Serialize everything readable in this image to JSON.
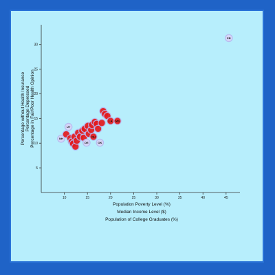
{
  "chart_data": {
    "type": "scatter",
    "x_axis_label_options": [
      "Population Poverty Level (%)",
      "Median Income Level ($)",
      "Population of College Graduates (%)"
    ],
    "y_axis_label_options": [
      "Percentage without Health Insurance",
      "Percentage Depressed",
      "Percentage in Fair/Poor Health Opinion"
    ],
    "xlim": [
      5,
      48
    ],
    "ylim": [
      0,
      34
    ],
    "xticks": [
      10,
      15,
      20,
      25,
      30,
      35,
      40,
      45
    ],
    "yticks": [
      5,
      10,
      15,
      20,
      25,
      30
    ],
    "points": [
      {
        "x": 45.6,
        "y": 31.3,
        "label": "PR"
      },
      {
        "x": 9.3,
        "y": 10.9,
        "label": "NH"
      },
      {
        "x": 10.4,
        "y": 11.8,
        "label": ""
      },
      {
        "x": 10.9,
        "y": 13.3,
        "label": "UT"
      },
      {
        "x": 11.3,
        "y": 11.0,
        "label": ""
      },
      {
        "x": 11.6,
        "y": 10.3,
        "label": ""
      },
      {
        "x": 11.9,
        "y": 9.9,
        "label": ""
      },
      {
        "x": 12.2,
        "y": 11.3,
        "label": ""
      },
      {
        "x": 12.4,
        "y": 9.3,
        "label": ""
      },
      {
        "x": 12.7,
        "y": 10.5,
        "label": ""
      },
      {
        "x": 13.0,
        "y": 12.1,
        "label": ""
      },
      {
        "x": 13.4,
        "y": 11.3,
        "label": ""
      },
      {
        "x": 13.9,
        "y": 12.5,
        "label": ""
      },
      {
        "x": 14.2,
        "y": 11.1,
        "label": ""
      },
      {
        "x": 14.4,
        "y": 12.9,
        "label": ""
      },
      {
        "x": 14.8,
        "y": 10.1,
        "label": "DE"
      },
      {
        "x": 15.1,
        "y": 13.5,
        "label": ""
      },
      {
        "x": 15.3,
        "y": 11.9,
        "label": ""
      },
      {
        "x": 15.8,
        "y": 12.7,
        "label": ""
      },
      {
        "x": 16.0,
        "y": 13.7,
        "label": ""
      },
      {
        "x": 16.3,
        "y": 11.3,
        "label": "OH"
      },
      {
        "x": 16.6,
        "y": 14.3,
        "label": ""
      },
      {
        "x": 17.0,
        "y": 13.9,
        "label": ""
      },
      {
        "x": 17.3,
        "y": 12.9,
        "label": ""
      },
      {
        "x": 17.7,
        "y": 10.1,
        "label": "OK"
      },
      {
        "x": 18.1,
        "y": 14.1,
        "label": ""
      },
      {
        "x": 18.4,
        "y": 16.5,
        "label": ""
      },
      {
        "x": 18.8,
        "y": 15.9,
        "label": ""
      },
      {
        "x": 19.3,
        "y": 15.5,
        "label": ""
      },
      {
        "x": 20.0,
        "y": 14.5,
        "label": "LA"
      },
      {
        "x": 21.5,
        "y": 14.5,
        "label": "MS"
      }
    ]
  },
  "colors": {
    "frame_bg": "#b7eefc",
    "outer_bg": "#1f63c7",
    "marker_fill": "#e41a1c",
    "marker_ring": "#b8b8f0"
  }
}
